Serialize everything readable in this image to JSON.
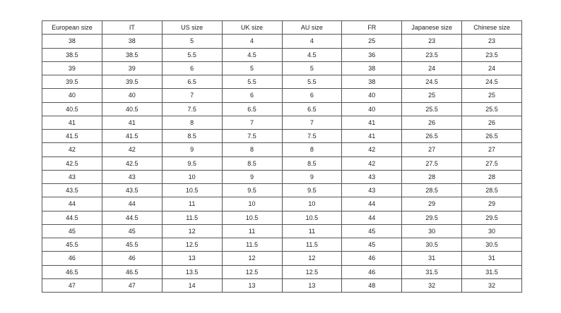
{
  "headers": [
    "European size",
    "IT",
    "US size",
    "UK size",
    "AU size",
    "FR",
    "Japanese size",
    "Chinese size"
  ],
  "rows": [
    [
      "38",
      "38",
      "5",
      "4",
      "4",
      "25",
      "23",
      "23"
    ],
    [
      "38.5",
      "38.5",
      "5.5",
      "4.5",
      "4.5",
      "36",
      "23.5",
      "23.5"
    ],
    [
      "39",
      "39",
      "6",
      "5",
      "5",
      "38",
      "24",
      "24"
    ],
    [
      "39.5",
      "39.5",
      "6.5",
      "5.5",
      "5.5",
      "38",
      "24.5",
      "24.5"
    ],
    [
      "40",
      "40",
      "7",
      "6",
      "6",
      "40",
      "25",
      "25"
    ],
    [
      "40.5",
      "40.5",
      "7.5",
      "6.5",
      "6.5",
      "40",
      "25.5",
      "25.5"
    ],
    [
      "41",
      "41",
      "8",
      "7",
      "7",
      "41",
      "26",
      "26"
    ],
    [
      "41.5",
      "41.5",
      "8.5",
      "7.5",
      "7.5",
      "41",
      "26.5",
      "26.5"
    ],
    [
      "42",
      "42",
      "9",
      "8",
      "8",
      "42",
      "27",
      "27"
    ],
    [
      "42.5",
      "42.5",
      "9.5",
      "8.5",
      "8.5",
      "42",
      "27.5",
      "27.5"
    ],
    [
      "43",
      "43",
      "10",
      "9",
      "9",
      "43",
      "28",
      "28"
    ],
    [
      "43.5",
      "43.5",
      "10.5",
      "9.5",
      "9.5",
      "43",
      "28.5",
      "28.5"
    ],
    [
      "44",
      "44",
      "11",
      "10",
      "10",
      "44",
      "29",
      "29"
    ],
    [
      "44.5",
      "44.5",
      "11.5",
      "10.5",
      "10.5",
      "44",
      "29.5",
      "29.5"
    ],
    [
      "45",
      "45",
      "12",
      "11",
      "11",
      "45",
      "30",
      "30"
    ],
    [
      "45.5",
      "45.5",
      "12.5",
      "11.5",
      "11.5",
      "45",
      "30.5",
      "30.5"
    ],
    [
      "46",
      "46",
      "13",
      "12",
      "12",
      "46",
      "31",
      "31"
    ],
    [
      "46.5",
      "46.5",
      "13.5",
      "12.5",
      "12.5",
      "46",
      "31.5",
      "31.5"
    ],
    [
      "47",
      "47",
      "14",
      "13",
      "13",
      "48",
      "32",
      "32"
    ]
  ]
}
